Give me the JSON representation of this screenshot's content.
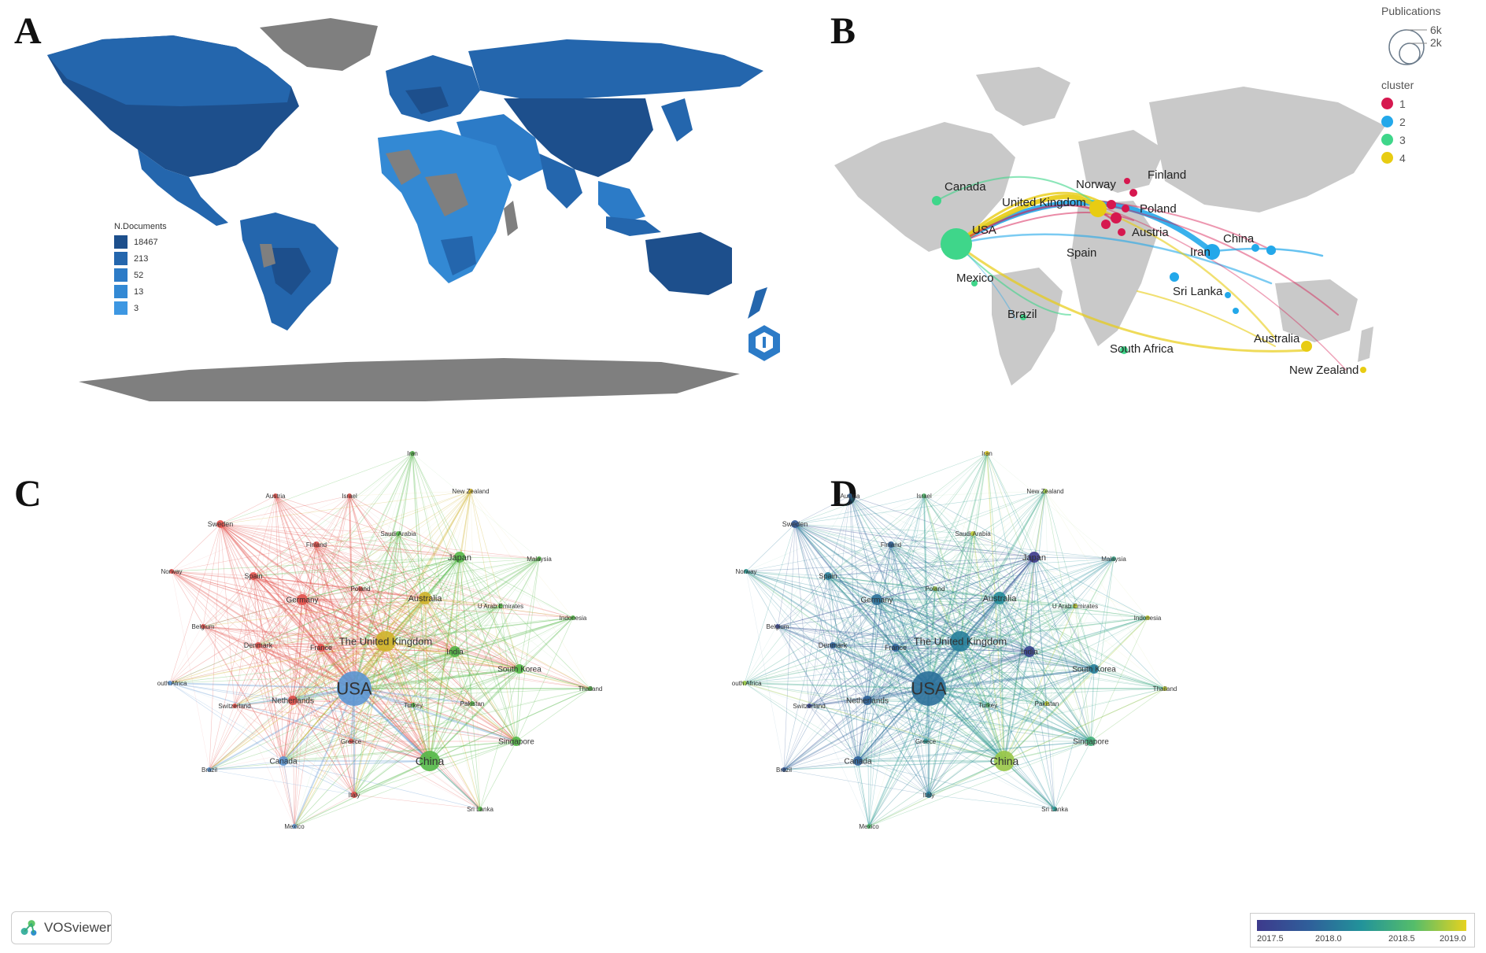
{
  "panels": {
    "a": {
      "letter": "A"
    },
    "b": {
      "letter": "B"
    },
    "c": {
      "letter": "C"
    },
    "d": {
      "letter": "D"
    }
  },
  "legend_a": {
    "title": "N.Documents",
    "items": [
      {
        "label": "18467",
        "color": "#1d4f8c"
      },
      {
        "label": "213",
        "color": "#2466ad"
      },
      {
        "label": "52",
        "color": "#2c7bc7"
      },
      {
        "label": "13",
        "color": "#3389d4"
      },
      {
        "label": "3",
        "color": "#3d97e2"
      }
    ]
  },
  "legend_b": {
    "publications_title": "Publications",
    "size_6k": "6k",
    "size_2k": "2k",
    "cluster_title": "cluster",
    "clusters": [
      {
        "label": "1",
        "color": "#d6184f"
      },
      {
        "label": "2",
        "color": "#23a8ea"
      },
      {
        "label": "3",
        "color": "#3fd68a"
      },
      {
        "label": "4",
        "color": "#e8cc12"
      }
    ]
  },
  "map_b_labels": {
    "canada": "Canada",
    "usa": "USA",
    "mexico": "Mexico",
    "brazil": "Brazil",
    "norway": "Norway",
    "finland": "Finland",
    "uk": "United Kingdom",
    "poland": "Poland",
    "austria": "Austria",
    "spain": "Spain",
    "iran": "Iran",
    "china": "China",
    "srilanka": "Sri Lanka",
    "southafrica": "South Africa",
    "australia": "Australia",
    "newzealand": "New Zealand"
  },
  "network_nodes": [
    {
      "name": "Iran",
      "cluster": "green",
      "year": 2019.0
    },
    {
      "name": "New Zealand",
      "cluster": "yellow",
      "year": 2018.8
    },
    {
      "name": "Austria",
      "cluster": "red",
      "year": 2017.9
    },
    {
      "name": "Israel",
      "cluster": "red",
      "year": 2018.6
    },
    {
      "name": "Sweden",
      "cluster": "red",
      "year": 2017.8
    },
    {
      "name": "Saudi Arabia",
      "cluster": "green",
      "year": 2018.9
    },
    {
      "name": "Finland",
      "cluster": "red",
      "year": 2017.9
    },
    {
      "name": "Japan",
      "cluster": "green",
      "year": 2017.5
    },
    {
      "name": "Malaysia",
      "cluster": "green",
      "year": 2018.4
    },
    {
      "name": "Norway",
      "cluster": "red",
      "year": 2018.3
    },
    {
      "name": "Spain",
      "cluster": "red",
      "year": 2018.1
    },
    {
      "name": "Poland",
      "cluster": "red",
      "year": 2018.8
    },
    {
      "name": "Germany",
      "cluster": "red",
      "year": 2018.0
    },
    {
      "name": "Australia",
      "cluster": "yellow",
      "year": 2018.2
    },
    {
      "name": "U Arab Emirates",
      "cluster": "green",
      "year": 2018.9
    },
    {
      "name": "Indonesia",
      "cluster": "green",
      "year": 2018.9
    },
    {
      "name": "Belgium",
      "cluster": "red",
      "year": 2017.6
    },
    {
      "name": "Denmark",
      "cluster": "red",
      "year": 2017.9
    },
    {
      "name": "France",
      "cluster": "red",
      "year": 2017.9
    },
    {
      "name": "The United Kingdom",
      "cluster": "yellow",
      "year": 2018.1
    },
    {
      "name": "India",
      "cluster": "green",
      "year": 2017.6
    },
    {
      "name": "South Korea",
      "cluster": "green",
      "year": 2018.1
    },
    {
      "name": "South Africa",
      "cluster": "blue",
      "year": 2018.8
    },
    {
      "name": "Thailand",
      "cluster": "green",
      "year": 2018.9
    },
    {
      "name": "USA",
      "cluster": "blue",
      "year": 2018.0
    },
    {
      "name": "Netherlands",
      "cluster": "red",
      "year": 2017.9
    },
    {
      "name": "Switzerland",
      "cluster": "red",
      "year": 2017.6
    },
    {
      "name": "Turkey",
      "cluster": "green",
      "year": 2018.6
    },
    {
      "name": "Pakistan",
      "cluster": "green",
      "year": 2018.9
    },
    {
      "name": "Greece",
      "cluster": "red",
      "year": 2018.3
    },
    {
      "name": "Singapore",
      "cluster": "green",
      "year": 2018.5
    },
    {
      "name": "Brazil",
      "cluster": "blue",
      "year": 2017.8
    },
    {
      "name": "Canada",
      "cluster": "blue",
      "year": 2017.9
    },
    {
      "name": "China",
      "cluster": "green",
      "year": 2018.8
    },
    {
      "name": "Italy",
      "cluster": "red",
      "year": 2018.1
    },
    {
      "name": "Sri Lanka",
      "cluster": "green",
      "year": 2018.3
    },
    {
      "name": "Mexico",
      "cluster": "blue",
      "year": 2018.6
    }
  ],
  "vosviewer": {
    "label": "VOSviewer"
  },
  "colorbar": {
    "ticks": [
      "2017.5",
      "2018.0",
      "2018.5",
      "2019.0"
    ]
  }
}
